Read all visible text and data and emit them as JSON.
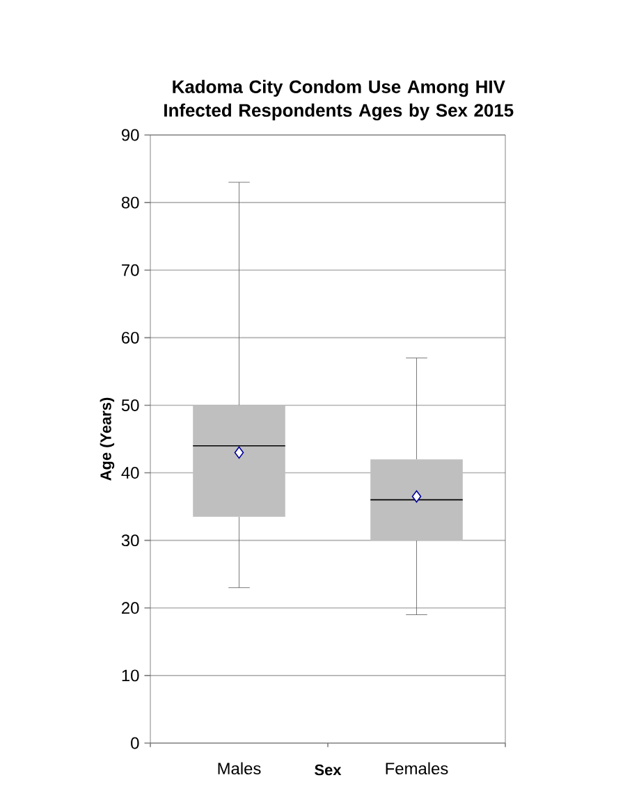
{
  "chart_data": {
    "type": "box",
    "title": "Kadoma City Condom Use Among HIV Infected Respondents Ages by Sex 2015",
    "xlabel": "Sex",
    "ylabel": "Age (Years)",
    "categories": [
      "Males",
      "Females"
    ],
    "boxes": [
      {
        "low": 23,
        "q1": 33.5,
        "median": 44,
        "q3": 50,
        "high": 83,
        "mean": 43
      },
      {
        "low": 19,
        "q1": 30,
        "median": 36,
        "q3": 42,
        "high": 57,
        "mean": 36.5
      }
    ],
    "color": "#bfbfbf",
    "marker": "diamond",
    "grid": "y",
    "ylim": [
      0,
      90
    ],
    "yticks": [
      0,
      10,
      20,
      30,
      40,
      50,
      60,
      70,
      80,
      90
    ]
  }
}
